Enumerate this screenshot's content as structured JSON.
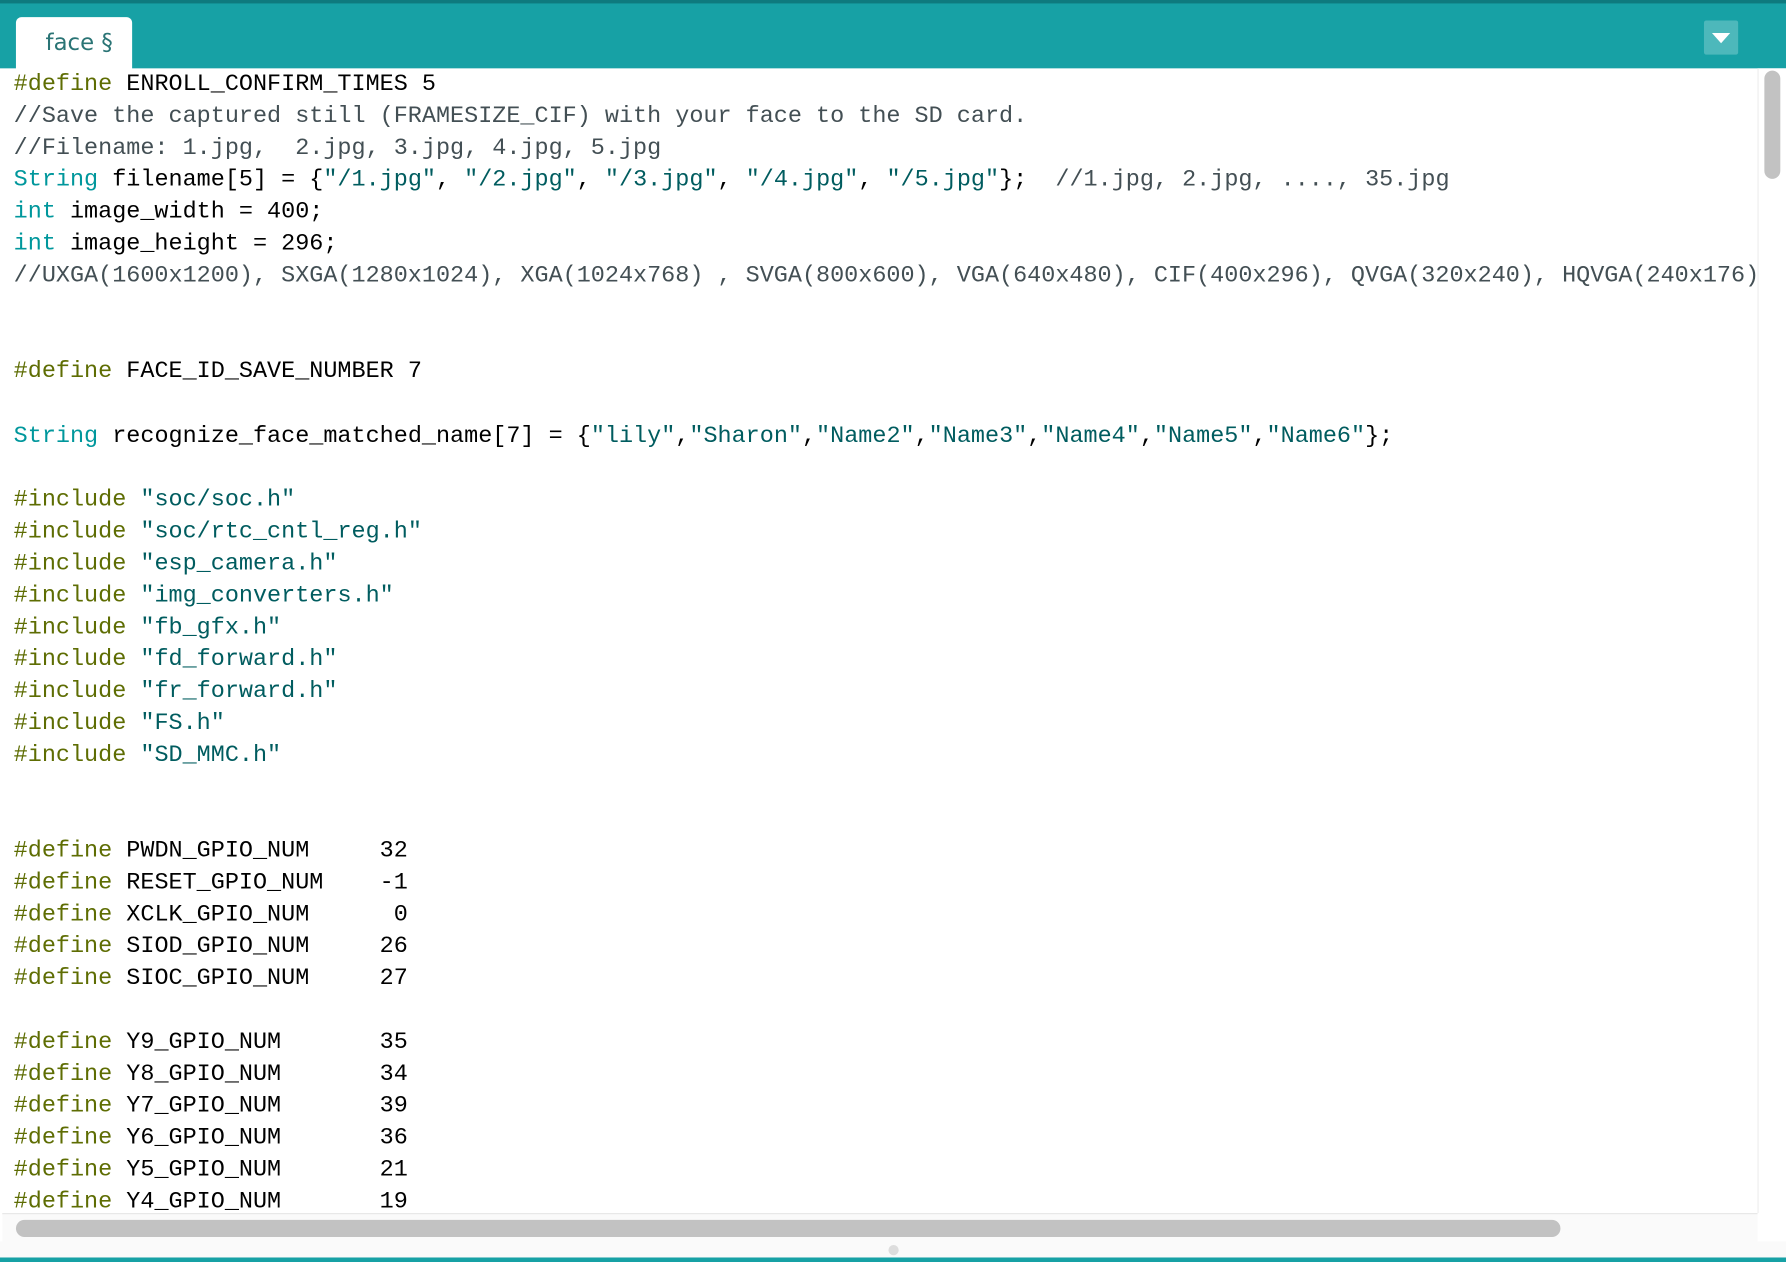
{
  "window": {
    "accent_color": "#17a1a5"
  },
  "tabs": [
    {
      "label": "face §"
    }
  ],
  "tab_menu": {
    "icon": "chevron-down-icon"
  },
  "syntax_colors": {
    "keyword": "#5e6d03",
    "type": "#00979c",
    "string": "#005c5f",
    "comment": "#434f54",
    "text": "#000000"
  },
  "code_lines": [
    [
      [
        "kw",
        "#define"
      ],
      [
        "tx",
        " ENROLL_CONFIRM_TIMES 5"
      ]
    ],
    [
      [
        "cm",
        "//Save the captured still (FRAMESIZE_CIF) with your face to the SD card."
      ]
    ],
    [
      [
        "cm",
        "//Filename: 1.jpg,  2.jpg, 3.jpg, 4.jpg, 5.jpg"
      ]
    ],
    [
      [
        "ty",
        "String"
      ],
      [
        "tx",
        " filename[5] = {"
      ],
      [
        "st",
        "\"/1.jpg\""
      ],
      [
        "tx",
        ", "
      ],
      [
        "st",
        "\"/2.jpg\""
      ],
      [
        "tx",
        ", "
      ],
      [
        "st",
        "\"/3.jpg\""
      ],
      [
        "tx",
        ", "
      ],
      [
        "st",
        "\"/4.jpg\""
      ],
      [
        "tx",
        ", "
      ],
      [
        "st",
        "\"/5.jpg\""
      ],
      [
        "tx",
        "};  "
      ],
      [
        "cm",
        "//1.jpg, 2.jpg, ...., 35.jpg"
      ]
    ],
    [
      [
        "ty",
        "int"
      ],
      [
        "tx",
        " image_width = 400;"
      ]
    ],
    [
      [
        "ty",
        "int"
      ],
      [
        "tx",
        " image_height = 296;"
      ]
    ],
    [
      [
        "cm",
        "//UXGA(1600x1200), SXGA(1280x1024), XGA(1024x768) , SVGA(800x600), VGA(640x480), CIF(400x296), QVGA(320x240), HQVGA(240x176),"
      ]
    ],
    [],
    [],
    [
      [
        "kw",
        "#define"
      ],
      [
        "tx",
        " FACE_ID_SAVE_NUMBER 7"
      ]
    ],
    [],
    [
      [
        "ty",
        "String"
      ],
      [
        "tx",
        " recognize_face_matched_name[7] = {"
      ],
      [
        "st",
        "\"lily\""
      ],
      [
        "tx",
        ","
      ],
      [
        "st",
        "\"Sharon\""
      ],
      [
        "tx",
        ","
      ],
      [
        "st",
        "\"Name2\""
      ],
      [
        "tx",
        ","
      ],
      [
        "st",
        "\"Name3\""
      ],
      [
        "tx",
        ","
      ],
      [
        "st",
        "\"Name4\""
      ],
      [
        "tx",
        ","
      ],
      [
        "st",
        "\"Name5\""
      ],
      [
        "tx",
        ","
      ],
      [
        "st",
        "\"Name6\""
      ],
      [
        "tx",
        "};"
      ]
    ],
    [],
    [
      [
        "kw",
        "#include"
      ],
      [
        "tx",
        " "
      ],
      [
        "st",
        "\"soc/soc.h\""
      ]
    ],
    [
      [
        "kw",
        "#include"
      ],
      [
        "tx",
        " "
      ],
      [
        "st",
        "\"soc/rtc_cntl_reg.h\""
      ]
    ],
    [
      [
        "kw",
        "#include"
      ],
      [
        "tx",
        " "
      ],
      [
        "st",
        "\"esp_camera.h\""
      ]
    ],
    [
      [
        "kw",
        "#include"
      ],
      [
        "tx",
        " "
      ],
      [
        "st",
        "\"img_converters.h\""
      ]
    ],
    [
      [
        "kw",
        "#include"
      ],
      [
        "tx",
        " "
      ],
      [
        "st",
        "\"fb_gfx.h\""
      ]
    ],
    [
      [
        "kw",
        "#include"
      ],
      [
        "tx",
        " "
      ],
      [
        "st",
        "\"fd_forward.h\""
      ]
    ],
    [
      [
        "kw",
        "#include"
      ],
      [
        "tx",
        " "
      ],
      [
        "st",
        "\"fr_forward.h\""
      ]
    ],
    [
      [
        "kw",
        "#include"
      ],
      [
        "tx",
        " "
      ],
      [
        "st",
        "\"FS.h\""
      ]
    ],
    [
      [
        "kw",
        "#include"
      ],
      [
        "tx",
        " "
      ],
      [
        "st",
        "\"SD_MMC.h\""
      ]
    ],
    [],
    [],
    [
      [
        "kw",
        "#define"
      ],
      [
        "tx",
        " PWDN_GPIO_NUM     32"
      ]
    ],
    [
      [
        "kw",
        "#define"
      ],
      [
        "tx",
        " RESET_GPIO_NUM    -1"
      ]
    ],
    [
      [
        "kw",
        "#define"
      ],
      [
        "tx",
        " XCLK_GPIO_NUM      0"
      ]
    ],
    [
      [
        "kw",
        "#define"
      ],
      [
        "tx",
        " SIOD_GPIO_NUM     26"
      ]
    ],
    [
      [
        "kw",
        "#define"
      ],
      [
        "tx",
        " SIOC_GPIO_NUM     27"
      ]
    ],
    [],
    [
      [
        "kw",
        "#define"
      ],
      [
        "tx",
        " Y9_GPIO_NUM       35"
      ]
    ],
    [
      [
        "kw",
        "#define"
      ],
      [
        "tx",
        " Y8_GPIO_NUM       34"
      ]
    ],
    [
      [
        "kw",
        "#define"
      ],
      [
        "tx",
        " Y7_GPIO_NUM       39"
      ]
    ],
    [
      [
        "kw",
        "#define"
      ],
      [
        "tx",
        " Y6_GPIO_NUM       36"
      ]
    ],
    [
      [
        "kw",
        "#define"
      ],
      [
        "tx",
        " Y5_GPIO_NUM       21"
      ]
    ],
    [
      [
        "kw",
        "#define"
      ],
      [
        "tx",
        " Y4_GPIO_NUM       19"
      ]
    ]
  ]
}
